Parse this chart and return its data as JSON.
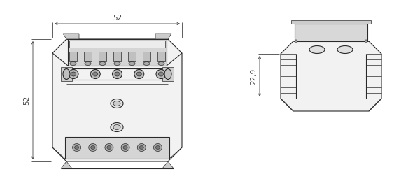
{
  "bg_color": "#ffffff",
  "line_color": "#2a2a2a",
  "dim_color": "#444444",
  "gray_fill": "#e8e8e8",
  "dark_gray": "#555555",
  "mid_gray": "#999999",
  "view1": {
    "dim_label_width": "52",
    "dim_label_height": "52"
  },
  "view2": {
    "dim_label": "22,9"
  }
}
